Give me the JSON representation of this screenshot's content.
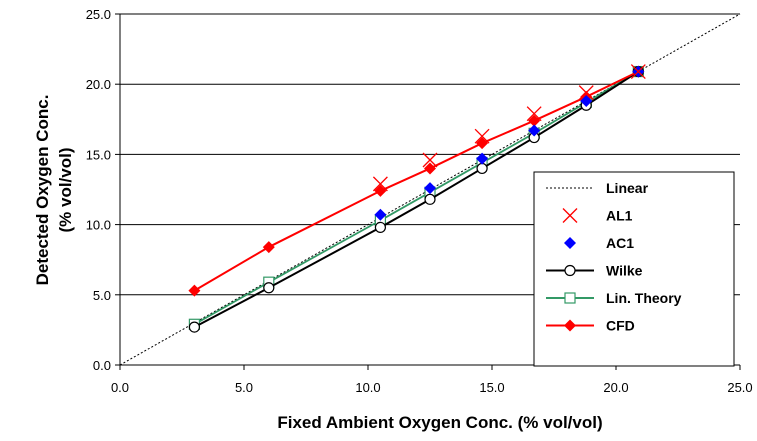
{
  "chart_data": {
    "type": "line",
    "xlabel": "Fixed Ambient Oxygen Conc. (% vol/vol)",
    "ylabel_lines": [
      "Detected Oxygen Conc.",
      "(% vol/vol)"
    ],
    "xlim": [
      0,
      25
    ],
    "ylim": [
      0,
      25
    ],
    "x_ticks": [
      "0.0",
      "5.0",
      "10.0",
      "15.0",
      "20.0",
      "25.0"
    ],
    "y_ticks": [
      "0.0",
      "5.0",
      "10.0",
      "15.0",
      "20.0",
      "25.0"
    ],
    "grid": "horizontal",
    "legend_position": "right",
    "series": [
      {
        "name": "Linear",
        "style": "dotted",
        "color": "#000000",
        "x": [
          0,
          25
        ],
        "y": [
          0,
          25
        ]
      },
      {
        "name": "AL1",
        "style": "marker-x",
        "color": "#ff0000",
        "x": [
          10.5,
          12.5,
          14.6,
          16.7,
          18.8,
          20.9
        ],
        "y": [
          12.9,
          14.6,
          16.3,
          17.9,
          19.4,
          20.9
        ]
      },
      {
        "name": "AC1",
        "style": "marker-diamond",
        "color": "#0000ff",
        "x": [
          10.5,
          12.5,
          14.6,
          16.7,
          18.8,
          20.9
        ],
        "y": [
          10.7,
          12.6,
          14.7,
          16.7,
          18.8,
          20.9
        ]
      },
      {
        "name": "Wilke",
        "style": "line-circle",
        "color": "#000000",
        "x": [
          3.0,
          6.0,
          10.5,
          12.5,
          14.6,
          16.7,
          18.8,
          20.9
        ],
        "y": [
          2.7,
          5.5,
          9.8,
          11.8,
          14.0,
          16.2,
          18.5,
          20.9
        ]
      },
      {
        "name": "Lin. Theory",
        "style": "line-square",
        "color": "#339966",
        "x": [
          3.0,
          6.0,
          10.5,
          12.5,
          14.6,
          16.7,
          18.8,
          20.9
        ],
        "y": [
          2.9,
          5.9,
          10.3,
          12.3,
          14.4,
          16.5,
          18.7,
          20.9
        ]
      },
      {
        "name": "CFD",
        "style": "line-diamond",
        "color": "#ff0000",
        "x": [
          3.0,
          6.0,
          10.5,
          12.5,
          14.6,
          16.7,
          18.8,
          20.9
        ],
        "y": [
          5.3,
          8.4,
          12.4,
          14.0,
          15.8,
          17.4,
          19.1,
          20.9
        ]
      }
    ]
  }
}
